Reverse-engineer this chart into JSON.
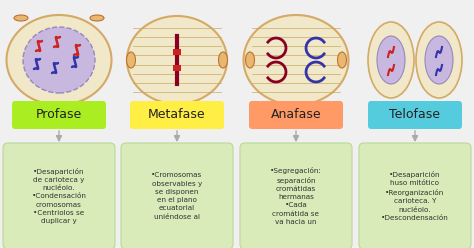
{
  "background_color": "#f0f0f0",
  "phases": [
    "Profase",
    "Metafase",
    "Anafase",
    "Telofase"
  ],
  "phase_colors": [
    "#aaee22",
    "#ffee44",
    "#ff9966",
    "#55ccdd"
  ],
  "text_color": "#555555",
  "box_color": "#d8ebb8",
  "box_border_color": "#b8d898",
  "box_text": [
    "•Desaparición\nde carioteca y\nnucléolo.\n•Condensación\ncromosomas\n•Centriolos se\nduplicar y",
    "•Cromosomas\nobservables y\nse disponen\nen el plano\necuatorial\nuniéndose al",
    "•Segregación:\nseparación\ncromátidas\nhermanas\n•Cada\ncromátida se\nva hacia un",
    "•Desaparición\nhuso mitótico\n•Reorganización\ncarioteca. Y\nnucléolo.\n•Descondensación"
  ],
  "arrow_color": "#aaaaaa",
  "figsize": [
    4.74,
    2.48
  ],
  "dpi": 100,
  "cell_outer_color": "#f0e8c8",
  "cell_outer_edge": "#d4aa66",
  "cell_inner_color": "#c8b8e0",
  "cell_inner_edge": "#9988bb",
  "spindle_color": "#c8a860",
  "chr_red": "#cc2222",
  "chr_blue": "#3333aa",
  "chr_dark_red": "#880022",
  "centriole_color": "#cc6600"
}
